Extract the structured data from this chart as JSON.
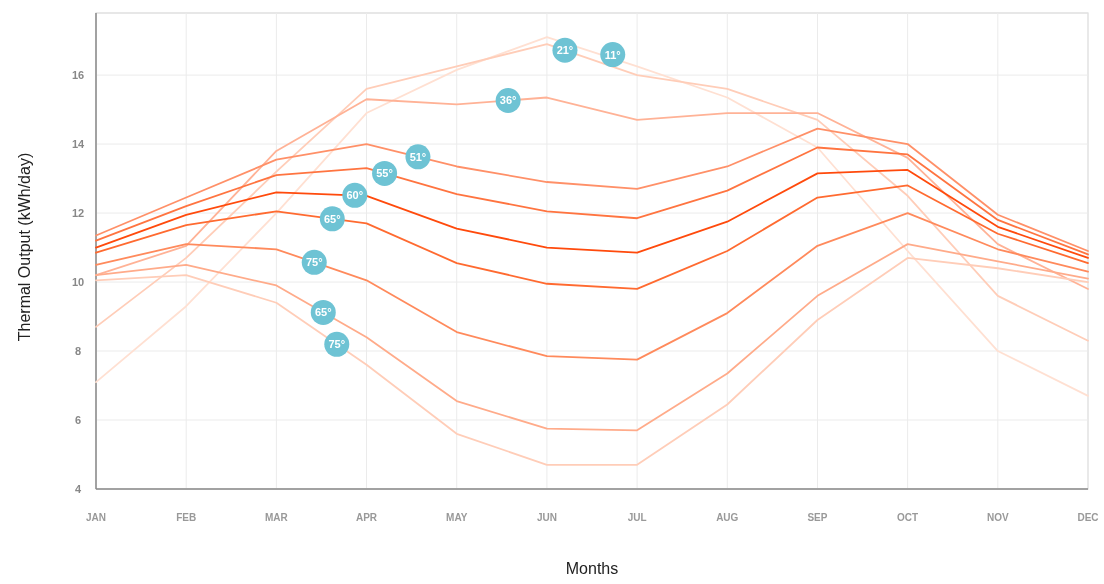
{
  "chart_data": {
    "type": "line",
    "xlabel": "Months",
    "ylabel": "Thermal Output (kWh/day)",
    "categories": [
      "JAN",
      "FEB",
      "MAR",
      "APR",
      "MAY",
      "JUN",
      "JUL",
      "AUG",
      "SEP",
      "OCT",
      "NOV",
      "DEC"
    ],
    "ylim": [
      4,
      17.8
    ],
    "yticks": [
      4,
      6,
      8,
      10,
      12,
      14,
      16
    ],
    "grid": true,
    "marker": "none",
    "line_style": "solid",
    "series": [
      {
        "name": "11°",
        "color": "#ffe0d2",
        "values": [
          7.1,
          9.3,
          12.0,
          14.9,
          16.15,
          17.1,
          16.25,
          15.35,
          13.9,
          10.9,
          8.0,
          6.7
        ]
      },
      {
        "name": "21°",
        "color": "#ffcdb8",
        "values": [
          8.7,
          10.7,
          13.2,
          15.6,
          16.25,
          16.9,
          16.0,
          15.6,
          14.7,
          12.5,
          9.6,
          8.3
        ]
      },
      {
        "name": "36°",
        "color": "#ffb296",
        "values": [
          10.2,
          11.05,
          13.8,
          15.3,
          15.15,
          15.35,
          14.7,
          14.9,
          14.9,
          13.6,
          11.1,
          9.8
        ]
      },
      {
        "name": "51°",
        "color": "#ff9068",
        "values": [
          11.35,
          12.45,
          13.55,
          14.0,
          13.35,
          12.9,
          12.7,
          13.35,
          14.45,
          14.0,
          11.95,
          10.9
        ]
      },
      {
        "name": "55°",
        "color": "#ff7440",
        "values": [
          11.2,
          12.2,
          13.1,
          13.3,
          12.55,
          12.05,
          11.85,
          12.65,
          13.9,
          13.7,
          11.8,
          10.8
        ]
      },
      {
        "name": "60°",
        "color": "#ff4a0c",
        "values": [
          11.0,
          11.95,
          12.6,
          12.5,
          11.55,
          11.0,
          10.85,
          11.75,
          13.15,
          13.25,
          11.6,
          10.7
        ]
      },
      {
        "name": "65°",
        "color": "#ff6a30",
        "values": [
          10.85,
          11.65,
          12.05,
          11.7,
          10.55,
          9.95,
          9.8,
          10.9,
          12.45,
          12.8,
          11.4,
          10.55
        ]
      },
      {
        "name": "75°",
        "color": "#ff8a5c",
        "values": [
          10.5,
          11.1,
          10.95,
          10.05,
          8.55,
          7.85,
          7.75,
          9.1,
          11.05,
          12.0,
          10.95,
          10.3
        ]
      },
      {
        "name": "65°",
        "color": "#ffab8a",
        "values": [
          10.2,
          10.5,
          9.9,
          8.4,
          6.55,
          5.75,
          5.7,
          7.35,
          9.6,
          11.1,
          10.6,
          10.1
        ]
      },
      {
        "name": "75°",
        "color": "#ffcdb8",
        "values": [
          10.05,
          10.2,
          9.4,
          7.6,
          5.6,
          4.7,
          4.7,
          6.45,
          8.9,
          10.7,
          10.4,
          10.0
        ]
      }
    ]
  }
}
